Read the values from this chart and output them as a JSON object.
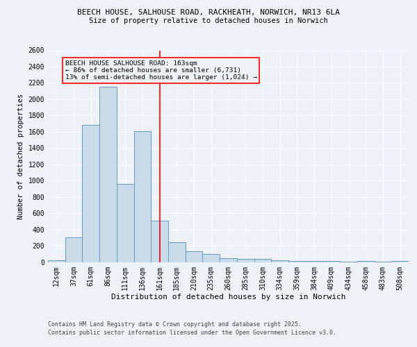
{
  "title_line1": "BEECH HOUSE, SALHOUSE ROAD, RACKHEATH, NORWICH, NR13 6LA",
  "title_line2": "Size of property relative to detached houses in Norwich",
  "xlabel": "Distribution of detached houses by size in Norwich",
  "ylabel": "Number of detached properties",
  "categories": [
    "12sqm",
    "37sqm",
    "61sqm",
    "86sqm",
    "111sqm",
    "136sqm",
    "161sqm",
    "185sqm",
    "210sqm",
    "235sqm",
    "260sqm",
    "285sqm",
    "310sqm",
    "334sqm",
    "359sqm",
    "384sqm",
    "409sqm",
    "434sqm",
    "458sqm",
    "483sqm",
    "508sqm"
  ],
  "values": [
    20,
    300,
    1680,
    2150,
    960,
    1610,
    510,
    245,
    130,
    100,
    50,
    35,
    35,
    20,
    15,
    15,
    10,
    5,
    10,
    5,
    10
  ],
  "bar_color": "#c9daea",
  "bar_edge_color": "#6699bb",
  "vline_x_index": 6,
  "vline_color": "red",
  "annotation_text": "BEECH HOUSE SALHOUSE ROAD: 163sqm\n← 86% of detached houses are smaller (6,731)\n13% of semi-detached houses are larger (1,024) →",
  "annotation_box_color": "red",
  "ylim": [
    0,
    2600
  ],
  "yticks": [
    0,
    200,
    400,
    600,
    800,
    1000,
    1200,
    1400,
    1600,
    1800,
    2000,
    2200,
    2400,
    2600
  ],
  "footnote1": "Contains HM Land Registry data © Crown copyright and database right 2025.",
  "footnote2": "Contains public sector information licensed under the Open Government Licence v3.0.",
  "bg_color": "#eef2f7",
  "grid_color": "#ffffff",
  "title1_fontsize": 8.0,
  "title2_fontsize": 7.5,
  "xlabel_fontsize": 8.0,
  "ylabel_fontsize": 7.5,
  "tick_fontsize": 7.0,
  "annot_fontsize": 6.8,
  "footnote_fontsize": 6.0
}
